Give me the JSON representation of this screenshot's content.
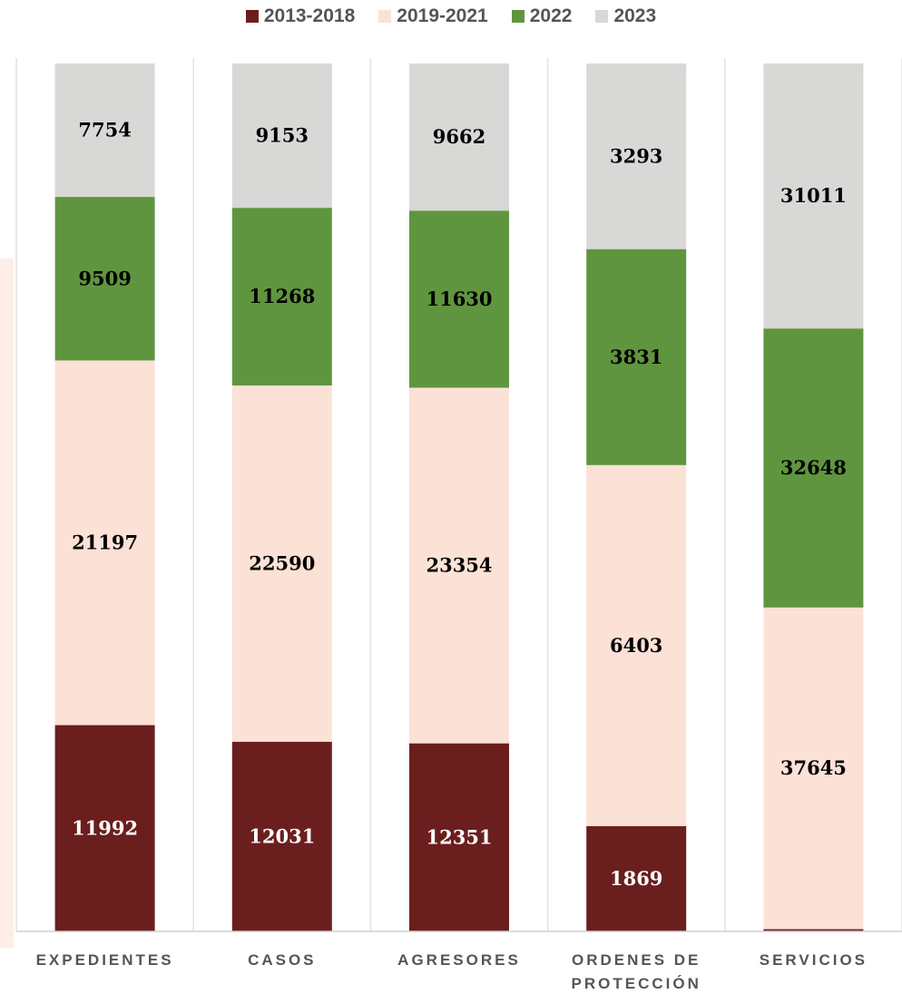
{
  "chart_data": {
    "type": "bar",
    "stacked": true,
    "categories": [
      "EXPEDIENTES",
      "CASOS",
      "AGRESORES",
      "ORDENES DE PROTECCIÓN",
      "SERVICIOS"
    ],
    "category_lines": [
      [
        "EXPEDIENTES"
      ],
      [
        "CASOS"
      ],
      [
        "AGRESORES"
      ],
      [
        "ORDENES DE",
        "PROTECCIÓN"
      ],
      [
        "SERVICIOS"
      ]
    ],
    "series": [
      {
        "name": "2013-2018",
        "color": "#6b1e1e",
        "label_color": "#ffffff",
        "values": [
          11992,
          12031,
          12351,
          1869,
          262
        ]
      },
      {
        "name": "2019-2021",
        "color": "#fce1d6",
        "label_color": "#000000",
        "values": [
          21197,
          22590,
          23354,
          6403,
          37645
        ]
      },
      {
        "name": "2022",
        "color": "#609540",
        "label_color": "#000000",
        "values": [
          9509,
          11268,
          11630,
          3831,
          32648
        ]
      },
      {
        "name": "2023",
        "color": "#d8d8d6",
        "label_color": "#000000",
        "values": [
          7754,
          9153,
          9662,
          3293,
          31011
        ]
      }
    ],
    "normalized": "100%",
    "legend_position": "top",
    "grid": "vertical separators"
  }
}
